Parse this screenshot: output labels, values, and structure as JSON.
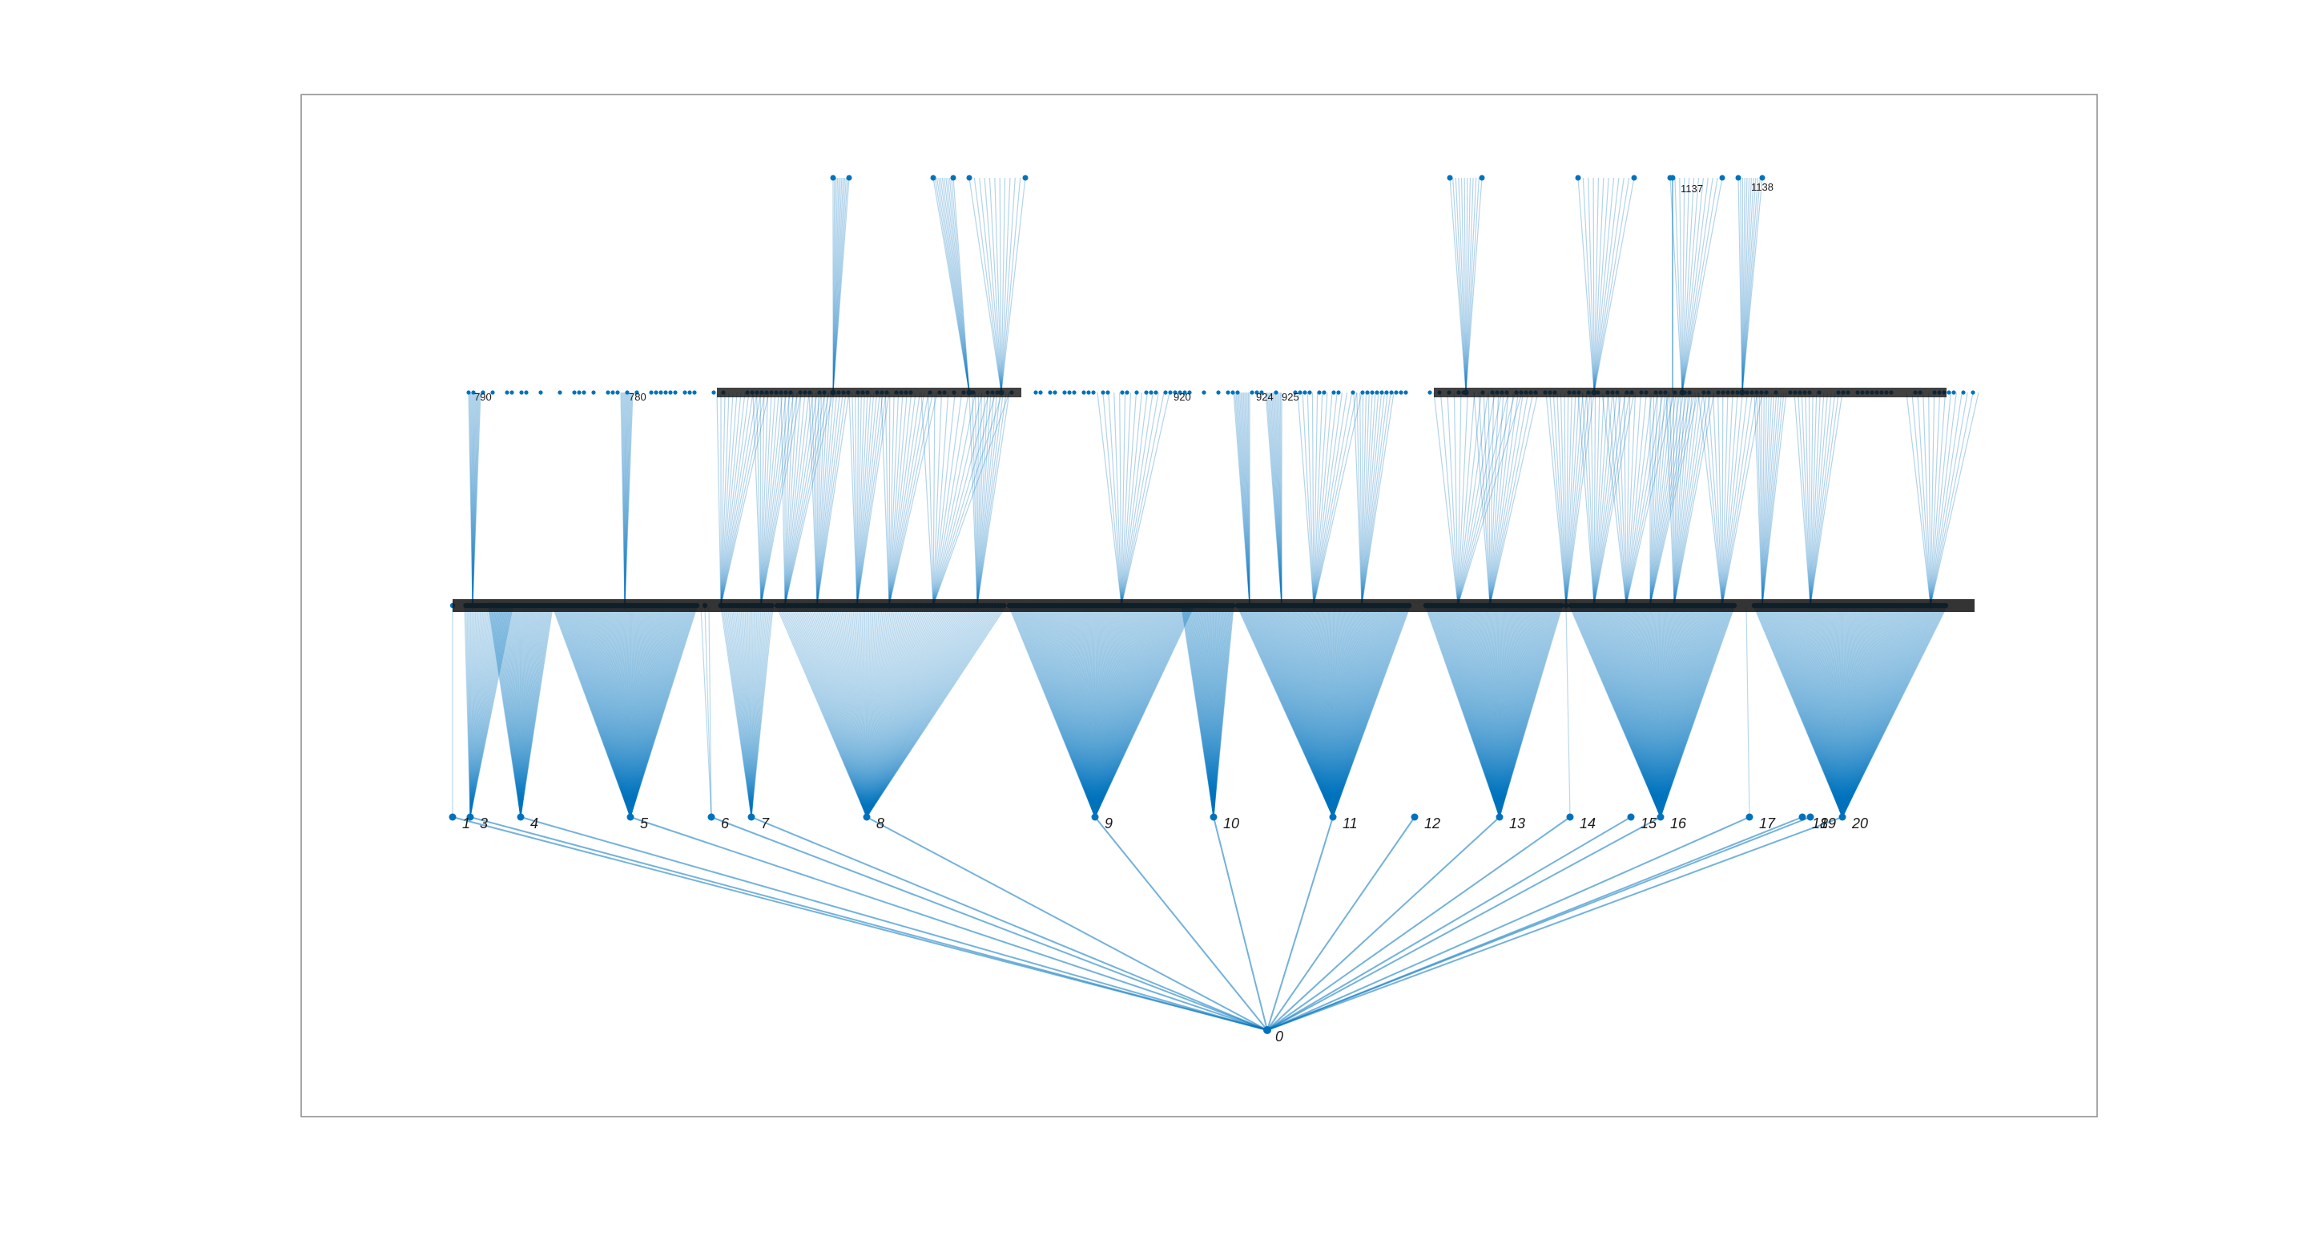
{
  "tree": {
    "root": "0",
    "level1": [
      "1",
      "3",
      "4",
      "5",
      "6",
      "7",
      "8",
      "9",
      "10",
      "11",
      "12",
      "13",
      "14",
      "15",
      "16",
      "17",
      "18",
      "19",
      "20"
    ],
    "level1_children_count": [
      1,
      40,
      70,
      180,
      3,
      40,
      160,
      220,
      80,
      240,
      0,
      180,
      1,
      0,
      220,
      1,
      0,
      0,
      240
    ],
    "level2_labeled": [
      "790",
      "780",
      "920",
      "924",
      "925",
      "1137",
      "1138"
    ],
    "level3_labeled": [
      "1137"
    ]
  },
  "colors": {
    "edge": "#0072BD",
    "node": "#0072BD",
    "frame": "#8a8a8a",
    "label": "#1a1a1a"
  }
}
